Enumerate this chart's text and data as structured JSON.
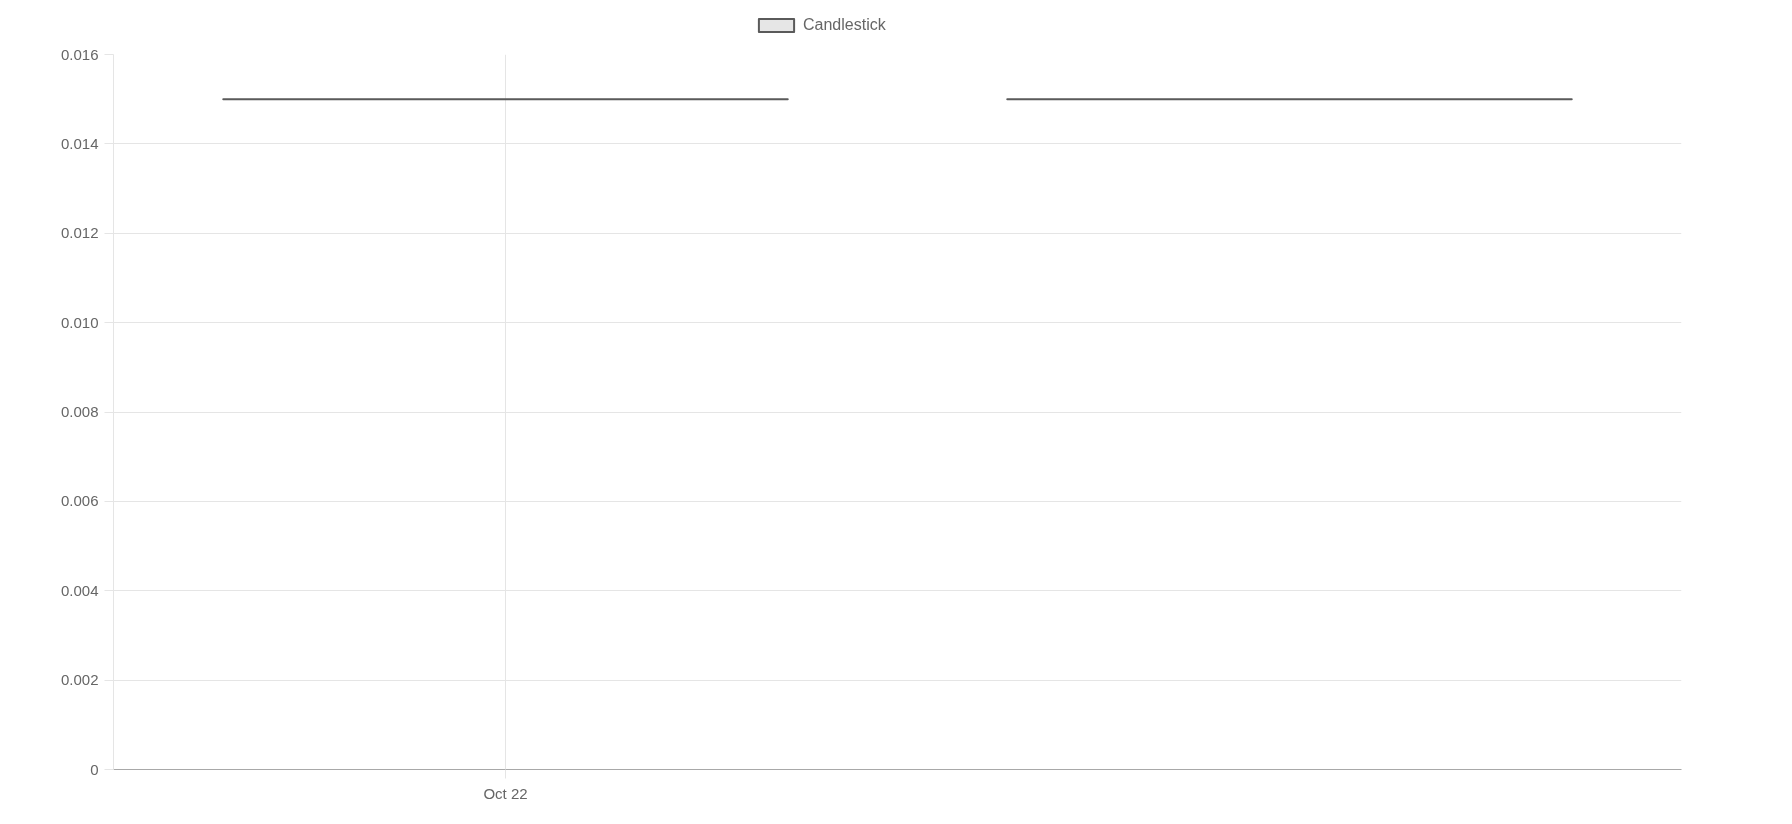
{
  "chart_data": {
    "type": "candlestick",
    "categories": [
      "Oct 22",
      null
    ],
    "series": [
      {
        "name": "Candlestick",
        "color": "#5a5a5a",
        "ohlc": [
          [
            0.015,
            0.015,
            0.015,
            0.015
          ],
          [
            0.015,
            0.015,
            0.015,
            0.015
          ]
        ]
      }
    ],
    "ylim": [
      0,
      0.016
    ],
    "yticks": [
      0,
      0.002,
      0.004,
      0.006,
      0.008,
      {
        "value": 0.01,
        "label": "0.010"
      },
      0.012,
      0.014,
      0.016
    ],
    "grid": true,
    "legend": "top"
  }
}
